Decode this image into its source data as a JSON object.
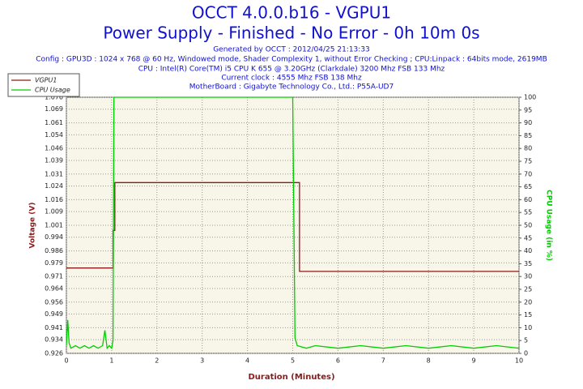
{
  "chart_data": {
    "type": "line",
    "title": "OCCT 4.0.0.b16 - VGPU1",
    "subtitle": "Power Supply - Finished - No Error - 0h 10m 0s",
    "info": [
      "Generated by OCCT : 2012/04/25 21:13:33",
      "Config : GPU3D : 1024 x 768 @ 60 Hz, Windowed mode, Shader Complexity 1, without Error Checking ; CPU:Linpack : 64bits mode, 2619MB",
      "CPU : Intel(R) Core(TM) i5 CPU K 655 @ 3.20GHz (Clarkdale) 3200 Mhz FSB 133 Mhz",
      "Current clock : 4555 Mhz FSB 138 Mhz",
      "MotherBoard : Gigabyte Technology Co., Ltd.: P55A-UD7"
    ],
    "xlabel": "Duration (Minutes)",
    "ylabel": "Voltage (V)",
    "y2label": "CPU Usage (in %)",
    "xlim": [
      0,
      10
    ],
    "xticks": [
      0,
      1,
      2,
      3,
      4,
      5,
      6,
      7,
      8,
      9,
      10
    ],
    "ylim": [
      0.926,
      1.076
    ],
    "yticks": [
      0.926,
      0.934,
      0.941,
      0.949,
      0.956,
      0.964,
      0.971,
      0.979,
      0.986,
      0.994,
      1.001,
      1.009,
      1.016,
      1.024,
      1.031,
      1.039,
      1.046,
      1.054,
      1.061,
      1.069,
      1.076
    ],
    "y2lim": [
      0,
      100
    ],
    "y2ticks": [
      0,
      5,
      10,
      15,
      20,
      25,
      30,
      35,
      40,
      45,
      50,
      55,
      60,
      65,
      70,
      75,
      80,
      85,
      90,
      95,
      100
    ],
    "grid": true,
    "legend": "top-left",
    "series": [
      {
        "name": "VGPU1",
        "color": "#8b1a1a",
        "x": [
          0,
          1.03,
          1.03,
          1.07,
          1.07,
          5.15,
          5.15,
          10
        ],
        "values": [
          0.976,
          0.976,
          0.998,
          0.998,
          1.026,
          1.026,
          0.974,
          0.974
        ]
      },
      {
        "name": "CPU Usage",
        "color": "#00cc00",
        "axis": "y2",
        "x": [
          0,
          0.03,
          0.06,
          0.1,
          0.2,
          0.3,
          0.4,
          0.5,
          0.6,
          0.7,
          0.8,
          0.85,
          0.9,
          0.95,
          1.0,
          1.03,
          1.05,
          1.1,
          2,
          3,
          4,
          4.98,
          5.0,
          5.05,
          5.1,
          5.3,
          5.5,
          6,
          6.5,
          7,
          7.5,
          8,
          8.5,
          9,
          9.5,
          10
        ],
        "values": [
          3,
          13,
          4,
          2,
          3,
          2,
          3,
          2,
          3,
          2,
          3,
          9,
          2,
          3,
          2,
          5,
          100,
          100,
          100,
          100,
          100,
          100,
          100,
          6,
          3,
          2,
          3,
          2,
          3,
          2,
          3,
          2,
          3,
          2,
          3,
          2
        ]
      }
    ]
  }
}
